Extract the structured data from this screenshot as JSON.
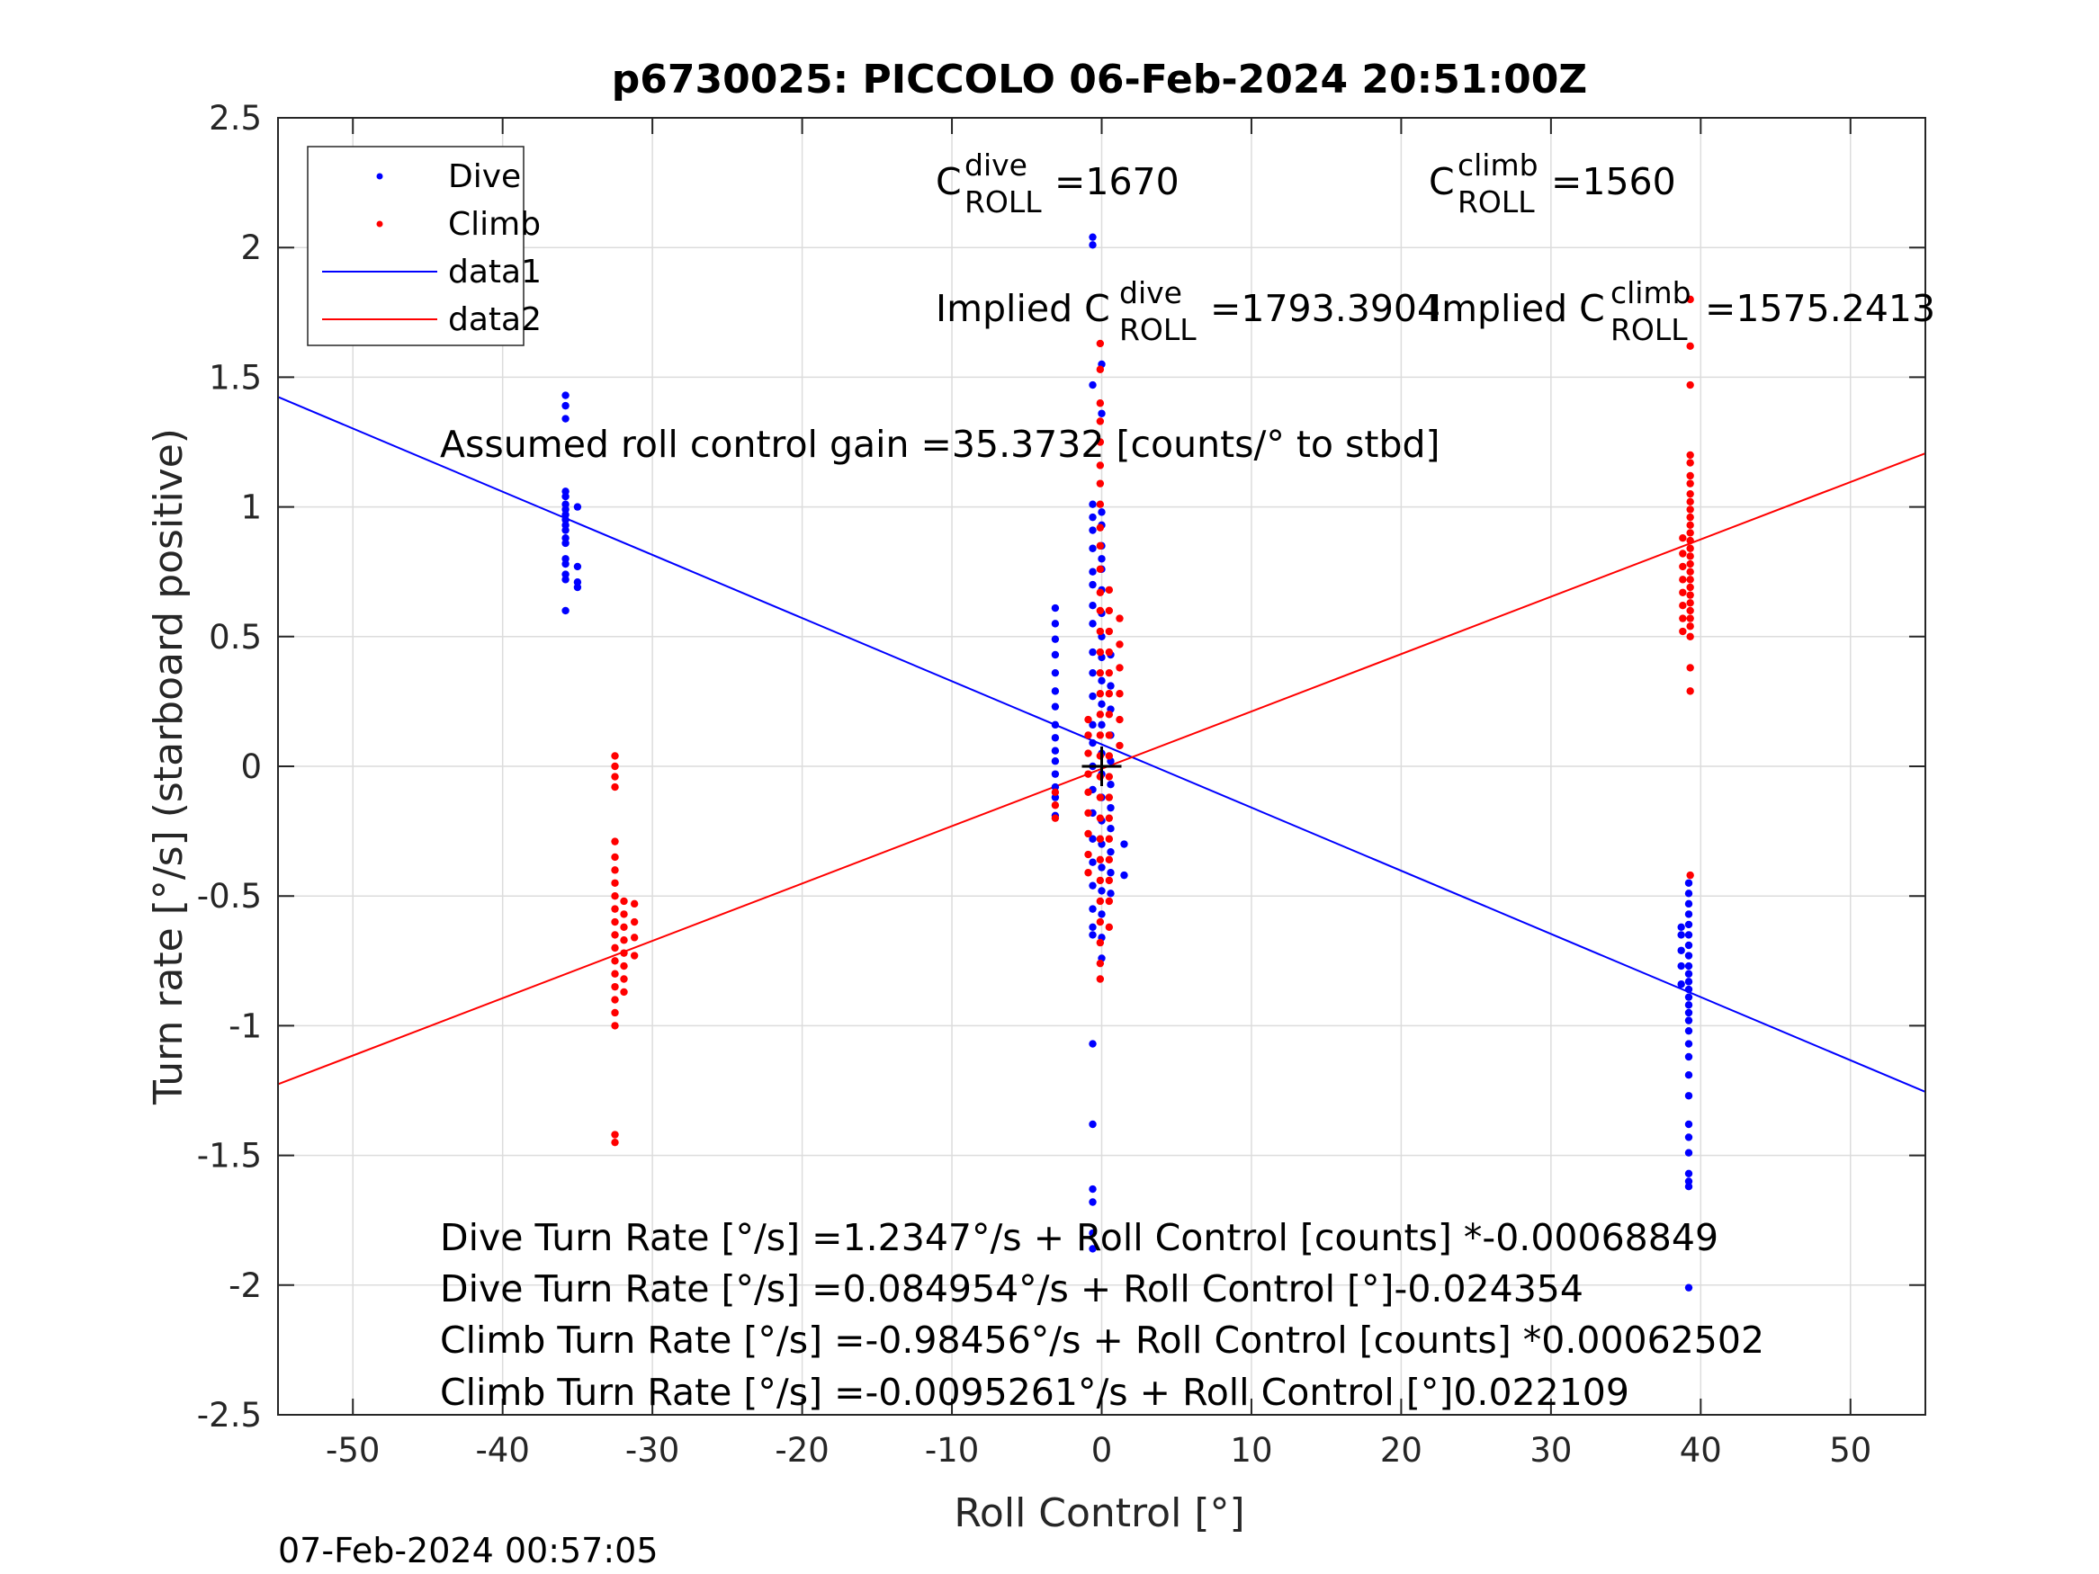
{
  "chart_data": {
    "type": "scatter",
    "title": "p6730025: PICCOLO 06-Feb-2024 20:51:00Z",
    "xlabel": "Roll Control [°]",
    "ylabel": "Turn rate [°/s] (starboard positive)",
    "xlim": [
      -55,
      55
    ],
    "ylim": [
      -2.5,
      2.5
    ],
    "xticks": [
      -50,
      -40,
      -30,
      -20,
      -10,
      0,
      10,
      20,
      30,
      40,
      50
    ],
    "yticks": [
      2.5,
      2,
      1.5,
      1,
      0.5,
      0,
      -0.5,
      -1,
      -1.5,
      -2,
      -2.5
    ],
    "xtick_labels": [
      "-50",
      "-40",
      "-30",
      "-20",
      "-10",
      "0",
      "10",
      "20",
      "30",
      "40",
      "50"
    ],
    "ytick_labels": [
      "2.5",
      "2",
      "1.5",
      "1",
      "0.5",
      "0",
      "-0.5",
      "-1",
      "-1.5",
      "-2",
      "-2.5"
    ],
    "grid": true,
    "legend_position": "top-left",
    "legend": [
      {
        "label": "Dive",
        "kind": "marker",
        "color": "#0000ff"
      },
      {
        "label": "Climb",
        "kind": "marker",
        "color": "#ff0000"
      },
      {
        "label": "data1",
        "kind": "line",
        "color": "#0000ff"
      },
      {
        "label": "data2",
        "kind": "line",
        "color": "#ff0000"
      }
    ],
    "series": [
      {
        "name": "Dive",
        "kind": "scatter",
        "color": "#0000ff",
        "clusters": [
          {
            "x": -35.8,
            "y": [
              1.43,
              1.39,
              1.34,
              1.06,
              1.04,
              1.01,
              0.99,
              0.97,
              0.95,
              0.93,
              0.91,
              0.88,
              0.86,
              0.8,
              0.78,
              0.74,
              0.72,
              0.6
            ]
          },
          {
            "x": -35.0,
            "y": [
              1.0,
              0.77,
              0.71,
              0.69
            ]
          },
          {
            "x": -3.1,
            "y": [
              0.61,
              0.55,
              0.49,
              0.43,
              0.36,
              0.29,
              0.23,
              0.16,
              0.11,
              0.06,
              0.02,
              -0.03,
              -0.08,
              -0.12,
              -0.19
            ]
          },
          {
            "x": -0.6,
            "y": [
              2.04,
              2.01,
              1.47,
              1.01,
              0.96,
              0.91,
              0.84,
              0.75,
              0.7,
              0.62,
              0.55,
              0.44,
              0.36,
              0.27,
              0.16,
              0.09,
              0.0,
              -0.09,
              -0.18,
              -0.28,
              -0.37,
              -0.46,
              -0.55,
              -0.62,
              -0.65,
              -1.07,
              -1.38,
              -1.63,
              -1.68,
              -1.8,
              -1.86
            ]
          },
          {
            "x": 0.0,
            "y": [
              1.55,
              1.36,
              0.98,
              0.93,
              0.85,
              0.8,
              0.76,
              0.68,
              0.59,
              0.5,
              0.42,
              0.33,
              0.24,
              0.16,
              0.05,
              -0.03,
              -0.12,
              -0.21,
              -0.3,
              -0.39,
              -0.48,
              -0.57,
              -0.66,
              -0.74
            ]
          },
          {
            "x": 0.6,
            "y": [
              0.43,
              0.31,
              0.22,
              0.12,
              0.02,
              -0.07,
              -0.16,
              -0.24,
              -0.33,
              -0.41,
              -0.49
            ]
          },
          {
            "x": 1.5,
            "y": [
              -0.3,
              -0.42
            ]
          },
          {
            "x": 38.7,
            "y": [
              -0.62,
              -0.65,
              -0.71,
              -0.77,
              -0.84
            ]
          },
          {
            "x": 39.2,
            "y": [
              -0.45,
              -0.49,
              -0.53,
              -0.57,
              -0.61,
              -0.65,
              -0.69,
              -0.73,
              -0.77,
              -0.8,
              -0.83,
              -0.86,
              -0.89,
              -0.92,
              -0.95,
              -0.98,
              -1.02,
              -1.07,
              -1.12,
              -1.19,
              -1.27,
              -1.38,
              -1.43,
              -1.49,
              -1.57,
              -1.6,
              -1.62,
              -2.01
            ]
          }
        ]
      },
      {
        "name": "Climb",
        "kind": "scatter",
        "color": "#ff0000",
        "clusters": [
          {
            "x": -32.5,
            "y": [
              0.04,
              0.0,
              -0.04,
              -0.08,
              -0.29,
              -0.35,
              -0.4,
              -0.45,
              -0.5,
              -0.55,
              -0.6,
              -0.65,
              -0.7,
              -0.75,
              -0.8,
              -0.85,
              -0.9,
              -0.95,
              -1.0,
              -1.42,
              -1.45
            ]
          },
          {
            "x": -31.9,
            "y": [
              -0.52,
              -0.57,
              -0.62,
              -0.67,
              -0.72,
              -0.77,
              -0.82,
              -0.87
            ]
          },
          {
            "x": -31.2,
            "y": [
              -0.53,
              -0.6,
              -0.66,
              -0.73
            ]
          },
          {
            "x": -3.1,
            "y": [
              -0.1,
              -0.15,
              -0.2
            ]
          },
          {
            "x": -0.9,
            "y": [
              0.18,
              0.12,
              0.05,
              -0.03,
              -0.1,
              -0.18,
              -0.26,
              -0.34,
              -0.41
            ]
          },
          {
            "x": -0.1,
            "y": [
              1.63,
              1.53,
              1.4,
              1.33,
              1.25,
              1.16,
              1.09,
              1.01,
              0.92,
              0.85,
              0.76,
              0.67,
              0.6,
              0.52,
              0.44,
              0.36,
              0.28,
              0.2,
              0.12,
              0.04,
              -0.04,
              -0.12,
              -0.2,
              -0.28,
              -0.36,
              -0.44,
              -0.52,
              -0.6,
              -0.68,
              -0.76,
              -0.82
            ]
          },
          {
            "x": 0.5,
            "y": [
              0.68,
              0.6,
              0.52,
              0.44,
              0.36,
              0.28,
              0.2,
              0.12,
              0.04,
              -0.04,
              -0.12,
              -0.2,
              -0.28,
              -0.36,
              -0.44,
              -0.52,
              -0.62
            ]
          },
          {
            "x": 1.2,
            "y": [
              0.57,
              0.47,
              0.38,
              0.28,
              0.18,
              0.08
            ]
          },
          {
            "x": 38.8,
            "y": [
              0.88,
              0.82,
              0.77,
              0.72,
              0.67,
              0.62,
              0.57,
              0.52
            ]
          },
          {
            "x": 39.3,
            "y": [
              1.8,
              1.62,
              1.47,
              1.2,
              1.17,
              1.12,
              1.09,
              1.05,
              1.02,
              0.99,
              0.96,
              0.93,
              0.9,
              0.87,
              0.84,
              0.81,
              0.78,
              0.75,
              0.72,
              0.69,
              0.66,
              0.63,
              0.6,
              0.57,
              0.54,
              0.5,
              0.38,
              0.29,
              -0.42
            ]
          }
        ]
      },
      {
        "name": "data1",
        "kind": "line",
        "color": "#0000ff",
        "x": [
          -55,
          55
        ],
        "y": [
          1.424,
          -1.255
        ]
      },
      {
        "name": "data2",
        "kind": "line",
        "color": "#ff0000",
        "x": [
          -55,
          55
        ],
        "y": [
          -1.2256,
          1.2066
        ]
      }
    ],
    "marker": {
      "x": 0,
      "y": 0,
      "symbol": "+",
      "color": "#000000"
    }
  },
  "annotations": {
    "c_dive_base": "C",
    "c_dive_sup": "dive",
    "c_dive_sub": "ROLL",
    "c_dive_value": "=1670",
    "c_climb_base": "C",
    "c_climb_sup": "climb",
    "c_climb_sub": "ROLL",
    "c_climb_value": "=1560",
    "implied_dive_prefix": "Implied C",
    "implied_dive_sup": "dive",
    "implied_dive_sub": "ROLL",
    "implied_dive_value": "=1793.3904",
    "implied_climb_prefix": "Implied C",
    "implied_climb_sup": "climb",
    "implied_climb_sub": "ROLL",
    "implied_climb_value": "=1575.2413",
    "gain": "Assumed roll control gain =35.3732 [counts/° to stbd]",
    "eq1": "Dive Turn Rate [°/s] =1.2347°/s + Roll Control [counts] *-0.00068849",
    "eq2": "Dive Turn Rate [°/s] =0.084954°/s + Roll Control [°]-0.024354",
    "eq3": "Climb Turn Rate [°/s] =-0.98456°/s + Roll Control [counts] *0.00062502",
    "eq4": "Climb Turn Rate [°/s] =-0.0095261°/s + Roll Control [°]0.022109"
  },
  "footer": {
    "timestamp": "07-Feb-2024 00:57:05"
  }
}
